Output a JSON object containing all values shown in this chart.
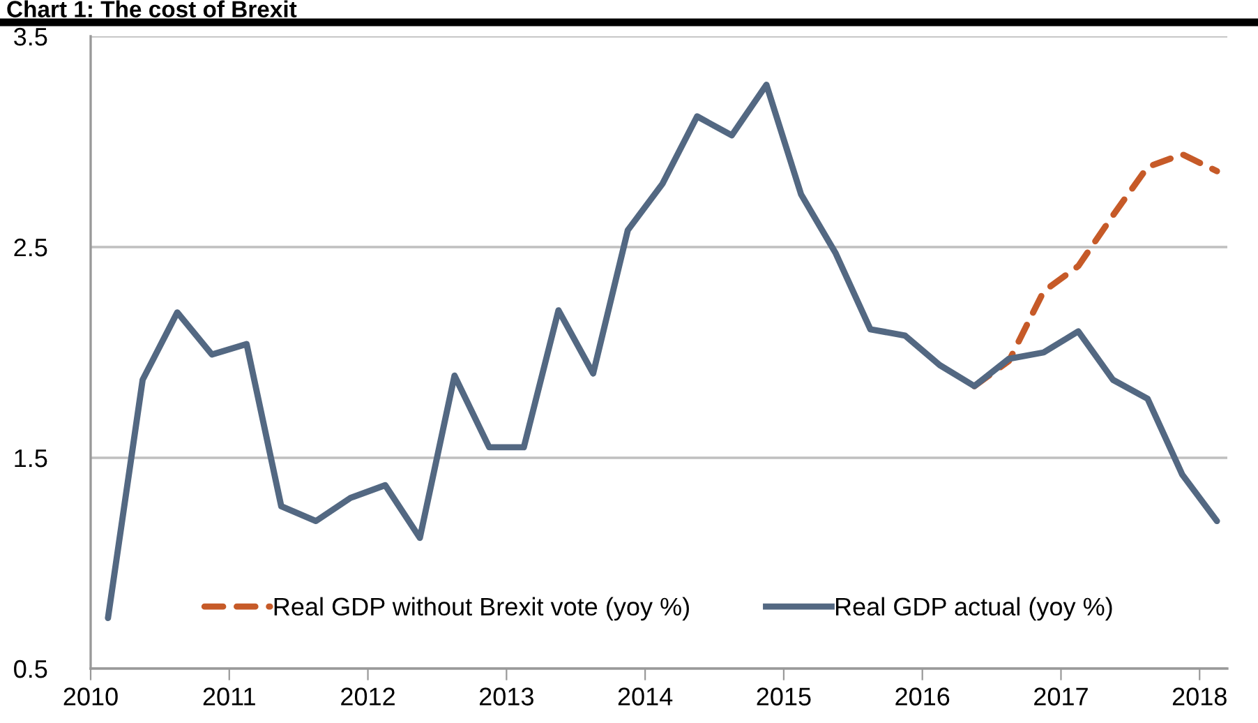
{
  "chart_data": {
    "type": "line",
    "title": "Chart 1: The cost of Brexit",
    "x": [
      2010.125,
      2010.375,
      2010.625,
      2010.875,
      2011.125,
      2011.375,
      2011.625,
      2011.875,
      2012.125,
      2012.375,
      2012.625,
      2012.875,
      2013.125,
      2013.375,
      2013.625,
      2013.875,
      2014.125,
      2014.375,
      2014.625,
      2014.875,
      2015.125,
      2015.375,
      2015.625,
      2015.875,
      2016.125,
      2016.375,
      2016.625,
      2016.875,
      2017.125,
      2017.375,
      2017.625,
      2017.875,
      2018.125
    ],
    "series": [
      {
        "name": "Real GDP without Brexit vote (yoy %)",
        "color": "#c65a28",
        "line_style": "dashed",
        "values": [
          null,
          null,
          null,
          null,
          null,
          null,
          null,
          null,
          null,
          null,
          null,
          null,
          null,
          null,
          null,
          null,
          null,
          null,
          null,
          null,
          null,
          null,
          null,
          null,
          null,
          1.84,
          1.96,
          2.29,
          2.41,
          2.65,
          2.88,
          2.94,
          2.86
        ]
      },
      {
        "name": "Real GDP actual (yoy %)",
        "color": "#536882",
        "line_style": "solid",
        "values": [
          0.74,
          1.87,
          2.19,
          1.99,
          2.04,
          1.27,
          1.2,
          1.31,
          1.37,
          1.12,
          1.89,
          1.55,
          1.55,
          2.2,
          1.9,
          2.58,
          2.8,
          3.12,
          3.03,
          3.27,
          2.75,
          2.47,
          2.11,
          2.08,
          1.94,
          1.84,
          1.97,
          2.0,
          2.1,
          1.87,
          1.78,
          1.42,
          1.2
        ]
      }
    ],
    "xlim": [
      2010,
      2018.2
    ],
    "xticks": [
      2010,
      2011,
      2012,
      2013,
      2014,
      2015,
      2016,
      2017,
      2018
    ],
    "ylim": [
      0.5,
      3.5
    ],
    "yticks": [
      0.5,
      1.5,
      2.5,
      3.5
    ],
    "grid": "y",
    "legend": "bottom"
  }
}
